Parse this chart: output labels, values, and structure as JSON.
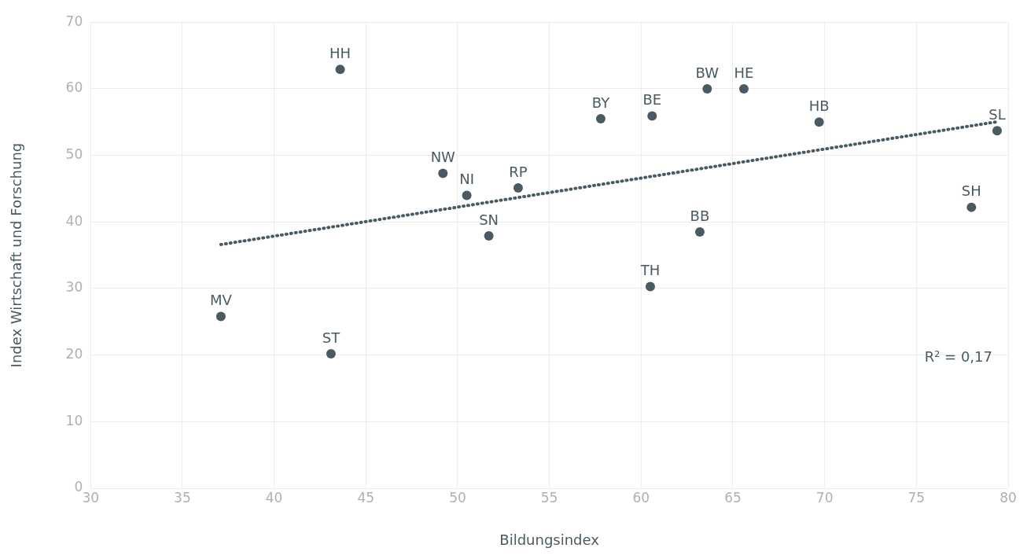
{
  "chart_data": {
    "type": "scatter",
    "xlabel": "Bildungsindex",
    "ylabel": "Index Wirtschaft und Forschung",
    "xlim": [
      30,
      80
    ],
    "xticks": [
      30,
      35,
      40,
      45,
      50,
      55,
      60,
      65,
      70,
      75,
      80
    ],
    "ylim": [
      0,
      70
    ],
    "yticks": [
      0,
      10,
      20,
      30,
      40,
      50,
      60,
      70
    ],
    "grid": true,
    "legend": false,
    "marker": "circle",
    "series": [
      {
        "color": "#4a5a63",
        "x": [
          43.6,
          63.6,
          65.6,
          57.8,
          60.6,
          69.7,
          79.4,
          49.2,
          50.5,
          53.3,
          51.7,
          78.0,
          63.2,
          60.5,
          37.1,
          43.1
        ],
        "values": [
          62.9,
          60.0,
          60.0,
          55.5,
          55.9,
          55.0,
          53.7,
          47.3,
          44.0,
          45.1,
          37.9,
          42.2,
          38.5,
          30.3,
          25.8,
          20.2
        ]
      },
      {
        "type": "line",
        "color": "#4a5a63",
        "line_style": "dotted",
        "marker": "none",
        "x": [
          37.1,
          79.3
        ],
        "values": [
          36.6,
          55.0
        ]
      }
    ],
    "annotations": [
      {
        "text": "HH",
        "x": 43.6,
        "y": 62.9
      },
      {
        "text": "BW",
        "x": 63.6,
        "y": 60.0
      },
      {
        "text": "HE",
        "x": 65.6,
        "y": 60.0
      },
      {
        "text": "BY",
        "x": 57.8,
        "y": 55.5
      },
      {
        "text": "BE",
        "x": 60.6,
        "y": 55.9
      },
      {
        "text": "HB",
        "x": 69.7,
        "y": 55.0
      },
      {
        "text": "SL",
        "x": 79.4,
        "y": 53.7
      },
      {
        "text": "NW",
        "x": 49.2,
        "y": 47.3
      },
      {
        "text": "NI",
        "x": 50.5,
        "y": 44.0
      },
      {
        "text": "RP",
        "x": 53.3,
        "y": 45.1
      },
      {
        "text": "SN",
        "x": 51.7,
        "y": 37.9
      },
      {
        "text": "SH",
        "x": 78.0,
        "y": 42.2
      },
      {
        "text": "BB",
        "x": 63.2,
        "y": 38.5
      },
      {
        "text": "TH",
        "x": 60.5,
        "y": 30.3
      },
      {
        "text": "MV",
        "x": 37.1,
        "y": 25.8
      },
      {
        "text": "ST",
        "x": 43.1,
        "y": 20.2
      },
      "R² = 0,17"
    ]
  }
}
